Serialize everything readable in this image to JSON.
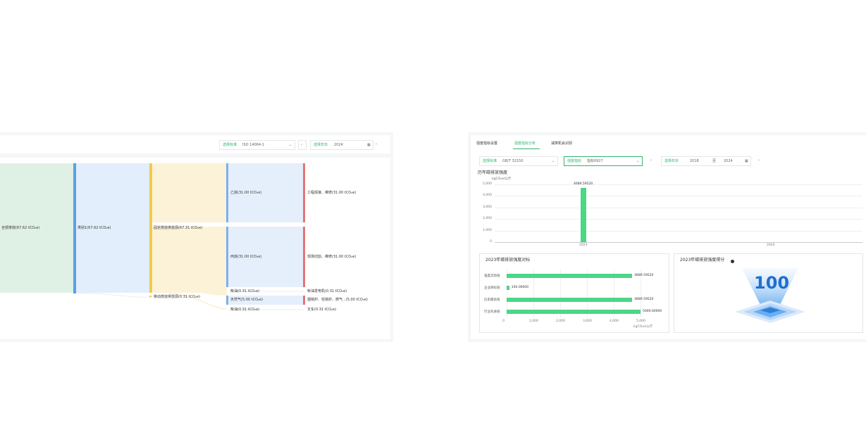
{
  "left": {
    "standard_label": "选择标准",
    "standard_value": "ISO 14064-1",
    "year_label": "选择年份",
    "year_value": "2024",
    "prev_icon": "chevron-left-icon",
    "next_icon": "chevron-right-icon",
    "calendar_icon": "calendar-icon",
    "nodes": [
      {
        "label": "全部排放(67.62 tCO₂e)"
      },
      {
        "label": "类别1(67.62 tCO₂e)"
      },
      {
        "label": "固定燃烧排放源(67.31 tCO₂e)"
      },
      {
        "label": "移动燃烧排放源(0.31 tCO₂e)"
      },
      {
        "label": "乙烷(31.00 tCO₂e)"
      },
      {
        "label": "丙烷(31.00 tCO₂e)"
      },
      {
        "label": "柴油(0.31 tCO₂e)"
      },
      {
        "label": "天然气(5.00 tCO₂e)"
      },
      {
        "label": "柴油(0.31 tCO₂e)"
      },
      {
        "label": "工程焊接、维修(31.00 tCO₂e)"
      },
      {
        "label": "现场切割、维修(31.00 tCO₂e)"
      },
      {
        "label": "柴油发电机(0.31 tCO₂e)"
      },
      {
        "label": "烟锅炉、柱锅炉、燃气...(5.00 tCO₂e)"
      },
      {
        "label": "叉车(0.31 tCO₂e)"
      }
    ]
  },
  "right": {
    "tabs": [
      {
        "label": "强度指标设置"
      },
      {
        "label": "强度指标分析"
      },
      {
        "label": "减排机会识别"
      }
    ],
    "standard_label": "选择标准",
    "standard_value": "GB/T 32150",
    "indicator_label": "强度指标",
    "indicator_value": "指标0927",
    "year_label": "选择年份",
    "year_from": "2018",
    "year_sep": "至",
    "year_to": "2024",
    "line_chart": {
      "title": "历年碳排放强度",
      "unit": "kgCO₂e/公斤",
      "yticks": [
        "5,000",
        "4,000",
        "3,000",
        "2,000",
        "1,000",
        "0"
      ],
      "xticks": [
        "2023",
        "2024"
      ]
    },
    "bar_chart": {
      "title": "2023年碳排放强度对标",
      "unit": "kgCO₂e/公斤",
      "xticks": [
        "0",
        "1,000",
        "2,000",
        "3,000",
        "4,000",
        "5,000"
      ]
    },
    "score": {
      "title": "2023年碳排放强度得分",
      "info_icon": "info-icon",
      "value": "100"
    }
  },
  "chart_data": [
    {
      "type": "bar",
      "title": "历年碳排放强度",
      "ylabel": "kgCO₂e/公斤",
      "categories": [
        "2023",
        "2024"
      ],
      "values": [
        4689.5952,
        0
      ],
      "data_labels": [
        "4689.59520"
      ],
      "ylim": [
        0,
        5000
      ],
      "grid": true
    },
    {
      "type": "bar",
      "orientation": "horizontal",
      "title": "2023年碳排放强度对标",
      "xlabel": "kgCO₂e/公斤",
      "categories": [
        "强度实际值",
        "企业目标值",
        "历史最优值",
        "行业先进值"
      ],
      "values": [
        4689.5952,
        100.0,
        4689.5952,
        5000.0
      ],
      "data_labels": [
        "4689.59520",
        "100.00000",
        "4689.59520",
        "5000.00000"
      ],
      "xlim": [
        0,
        5000
      ],
      "grid": true
    }
  ]
}
